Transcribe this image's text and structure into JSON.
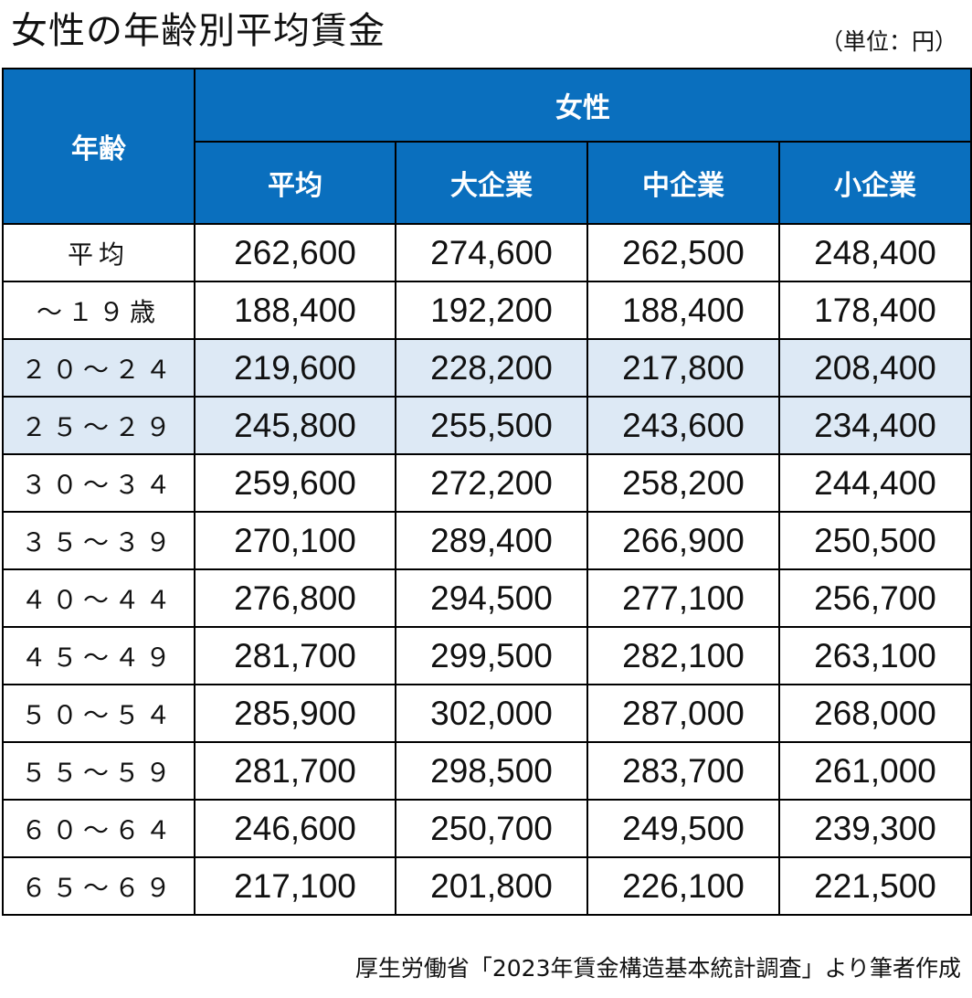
{
  "title": "女性の年齢別平均賃金",
  "unit": "（単位：円）",
  "source": "厚生労働省「2023年賃金構造基本統計調査」より筆者作成",
  "colors": {
    "header": "#0a6fbe",
    "highlight_row": "#dde9f5"
  },
  "header": {
    "age": "年齢",
    "group": "女性",
    "columns": [
      "平均",
      "大企業",
      "中企業",
      "小企業"
    ]
  },
  "rows": [
    {
      "age": "平均",
      "values": [
        "262,600",
        "274,600",
        "262,500",
        "248,400"
      ],
      "highlight": false
    },
    {
      "age": "～１９歳",
      "values": [
        "188,400",
        "192,200",
        "188,400",
        "178,400"
      ],
      "highlight": false
    },
    {
      "age": "２０～２４",
      "values": [
        "219,600",
        "228,200",
        "217,800",
        "208,400"
      ],
      "highlight": true
    },
    {
      "age": "２５～２９",
      "values": [
        "245,800",
        "255,500",
        "243,600",
        "234,400"
      ],
      "highlight": true
    },
    {
      "age": "３０～３４",
      "values": [
        "259,600",
        "272,200",
        "258,200",
        "244,400"
      ],
      "highlight": false
    },
    {
      "age": "３５～３９",
      "values": [
        "270,100",
        "289,400",
        "266,900",
        "250,500"
      ],
      "highlight": false
    },
    {
      "age": "４０～４４",
      "values": [
        "276,800",
        "294,500",
        "277,100",
        "256,700"
      ],
      "highlight": false
    },
    {
      "age": "４５～４９",
      "values": [
        "281,700",
        "299,500",
        "282,100",
        "263,100"
      ],
      "highlight": false
    },
    {
      "age": "５０～５４",
      "values": [
        "285,900",
        "302,000",
        "287,000",
        "268,000"
      ],
      "highlight": false
    },
    {
      "age": "５５～５９",
      "values": [
        "281,700",
        "298,500",
        "283,700",
        "261,000"
      ],
      "highlight": false
    },
    {
      "age": "６０～６４",
      "values": [
        "246,600",
        "250,700",
        "249,500",
        "239,300"
      ],
      "highlight": false
    },
    {
      "age": "６５～６９",
      "values": [
        "217,100",
        "201,800",
        "226,100",
        "221,500"
      ],
      "highlight": false
    }
  ],
  "chart_data": {
    "type": "table",
    "title": "女性の年齢別平均賃金",
    "unit": "円",
    "categories": [
      "平均",
      "～１９歳",
      "２０～２４",
      "２５～２９",
      "３０～３４",
      "３５～３９",
      "４０～４４",
      "４５～４９",
      "５０～５４",
      "５５～５９",
      "６０～６４",
      "６５～６９"
    ],
    "series": [
      {
        "name": "平均",
        "values": [
          262600,
          188400,
          219600,
          245800,
          259600,
          270100,
          276800,
          281700,
          285900,
          281700,
          246600,
          217100
        ]
      },
      {
        "name": "大企業",
        "values": [
          274600,
          192200,
          228200,
          255500,
          272200,
          289400,
          294500,
          299500,
          302000,
          298500,
          250700,
          201800
        ]
      },
      {
        "name": "中企業",
        "values": [
          262500,
          188400,
          217800,
          243600,
          258200,
          266900,
          277100,
          282100,
          287000,
          283700,
          249500,
          226100
        ]
      },
      {
        "name": "小企業",
        "values": [
          248400,
          178400,
          208400,
          234400,
          244400,
          250500,
          256700,
          263100,
          268000,
          261000,
          239300,
          221500
        ]
      }
    ]
  }
}
